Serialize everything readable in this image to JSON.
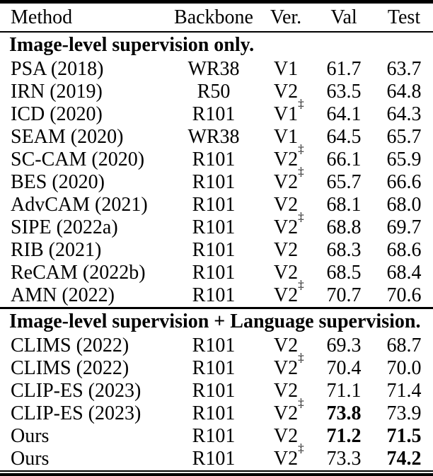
{
  "table": {
    "columns": [
      "Method",
      "Backbone",
      "Ver.",
      "Val",
      "Test"
    ],
    "dagger_symbol": "‡",
    "sections": [
      {
        "header": "Image-level supervision only.",
        "rows": [
          {
            "method": "PSA (2018)",
            "backbone": "WR38",
            "ver": "V1",
            "dagger": false,
            "val": "61.7",
            "test": "63.7",
            "val_bold": false,
            "test_bold": false
          },
          {
            "method": "IRN (2019)",
            "backbone": "R50",
            "ver": "V2",
            "dagger": false,
            "val": "63.5",
            "test": "64.8",
            "val_bold": false,
            "test_bold": false
          },
          {
            "method": "ICD (2020)",
            "backbone": "R101",
            "ver": "V1",
            "dagger": true,
            "val": "64.1",
            "test": "64.3",
            "val_bold": false,
            "test_bold": false
          },
          {
            "method": "SEAM (2020)",
            "backbone": "WR38",
            "ver": "V1",
            "dagger": false,
            "val": "64.5",
            "test": "65.7",
            "val_bold": false,
            "test_bold": false
          },
          {
            "method": "SC-CAM (2020)",
            "backbone": "R101",
            "ver": "V2",
            "dagger": true,
            "val": "66.1",
            "test": "65.9",
            "val_bold": false,
            "test_bold": false
          },
          {
            "method": "BES (2020)",
            "backbone": "R101",
            "ver": "V2",
            "dagger": true,
            "val": "65.7",
            "test": "66.6",
            "val_bold": false,
            "test_bold": false
          },
          {
            "method": "AdvCAM (2021)",
            "backbone": "R101",
            "ver": "V2",
            "dagger": false,
            "val": "68.1",
            "test": "68.0",
            "val_bold": false,
            "test_bold": false
          },
          {
            "method": "SIPE (2022a)",
            "backbone": "R101",
            "ver": "V2",
            "dagger": true,
            "val": "68.8",
            "test": "69.7",
            "val_bold": false,
            "test_bold": false
          },
          {
            "method": "RIB (2021)",
            "backbone": "R101",
            "ver": "V2",
            "dagger": false,
            "val": "68.3",
            "test": "68.6",
            "val_bold": false,
            "test_bold": false
          },
          {
            "method": "ReCAM (2022b)",
            "backbone": "R101",
            "ver": "V2",
            "dagger": false,
            "val": "68.5",
            "test": "68.4",
            "val_bold": false,
            "test_bold": false
          },
          {
            "method": "AMN (2022)",
            "backbone": "R101",
            "ver": "V2",
            "dagger": true,
            "val": "70.7",
            "test": "70.6",
            "val_bold": false,
            "test_bold": false
          }
        ]
      },
      {
        "header": "Image-level supervision + Language supervision.",
        "rows": [
          {
            "method": "CLIMS (2022)",
            "backbone": "R101",
            "ver": "V2",
            "dagger": false,
            "val": "69.3",
            "test": "68.7",
            "val_bold": false,
            "test_bold": false
          },
          {
            "method": "CLIMS (2022)",
            "backbone": "R101",
            "ver": "V2",
            "dagger": true,
            "val": "70.4",
            "test": "70.0",
            "val_bold": false,
            "test_bold": false
          },
          {
            "method": "CLIP-ES (2023)",
            "backbone": "R101",
            "ver": "V2",
            "dagger": false,
            "val": "71.1",
            "test": "71.4",
            "val_bold": false,
            "test_bold": false
          },
          {
            "method": "CLIP-ES (2023)",
            "backbone": "R101",
            "ver": "V2",
            "dagger": true,
            "val": "73.8",
            "test": "73.9",
            "val_bold": true,
            "test_bold": false
          },
          {
            "method": "Ours",
            "backbone": "R101",
            "ver": "V2",
            "dagger": false,
            "val": "71.2",
            "test": "71.5",
            "val_bold": true,
            "test_bold": true
          },
          {
            "method": "Ours",
            "backbone": "R101",
            "ver": "V2",
            "dagger": true,
            "val": "73.3",
            "test": "74.2",
            "val_bold": false,
            "test_bold": true
          }
        ]
      }
    ]
  }
}
